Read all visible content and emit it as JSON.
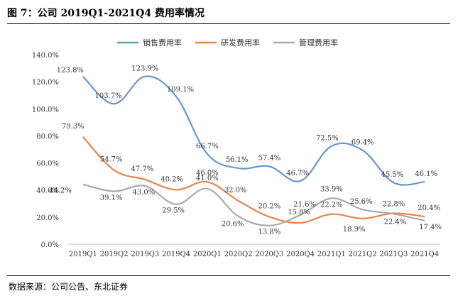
{
  "figure": {
    "title": "图 7：公司 2019Q1-2021Q4 费用率情况",
    "source": "数据来源：公司公告、东北证券"
  },
  "chart_data": {
    "type": "line",
    "title": "",
    "xlabel": "",
    "ylabel": "",
    "ylim": [
      0,
      140
    ],
    "ytick_step": 20,
    "ytick_suffix": ".0%",
    "grid": false,
    "legend_position": "top",
    "categories": [
      "2019Q1",
      "2019Q2",
      "2019Q3",
      "2019Q4",
      "2020Q1",
      "2020Q2",
      "2020Q3",
      "2020Q4",
      "2021Q1",
      "2021Q2",
      "2021Q3",
      "2021Q4"
    ],
    "series": [
      {
        "name": "销售费用率",
        "color": "#6699cc",
        "values": [
          123.8,
          103.7,
          123.9,
          109.1,
          66.7,
          56.1,
          57.4,
          46.7,
          72.5,
          69.4,
          45.5,
          46.1
        ],
        "labels": [
          "123.8%",
          "103.7%",
          "123.9%",
          "109.1%",
          "66.7%",
          "56.1%",
          "57.4%",
          "46.7%",
          "72.5%",
          "69.4%",
          "45.5%",
          "46.1%"
        ]
      },
      {
        "name": "研发费用率",
        "color": "#e8844a",
        "values": [
          79.3,
          54.7,
          47.7,
          40.2,
          46.0,
          32.0,
          20.2,
          15.8,
          22.2,
          18.9,
          22.8,
          20.4
        ],
        "labels": [
          "79.3%",
          "54.7%",
          "47.7%",
          "40.2%",
          "46.0%",
          "32.0%",
          "20.2%",
          "15.8%",
          "22.2%",
          "18.9%",
          "22.8%",
          "20.4%"
        ]
      },
      {
        "name": "管理费用率",
        "color": "#aaaaaa",
        "values": [
          44.2,
          39.1,
          43.0,
          29.5,
          41.0,
          20.6,
          13.8,
          21.6,
          33.9,
          25.6,
          22.4,
          17.4
        ],
        "labels": [
          "44.2%",
          "39.1%",
          "43.0%",
          "29.5%",
          "41.0%",
          "20.6%",
          "13.8%",
          "21.6%",
          "33.9%",
          "25.6%",
          "22.4%",
          "17.4%"
        ]
      }
    ]
  }
}
